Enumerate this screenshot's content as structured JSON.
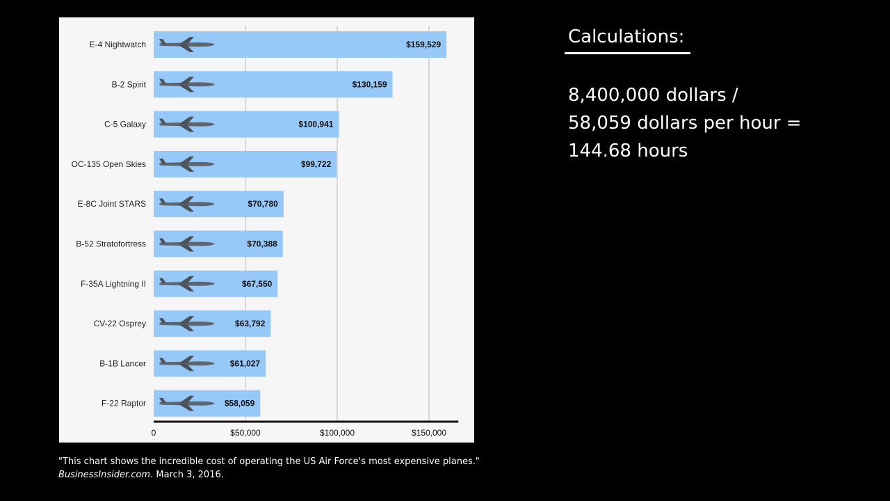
{
  "chart_data": {
    "type": "bar",
    "orientation": "horizontal",
    "categories": [
      "E-4 Nightwatch",
      "B-2 Spirit",
      "C-5 Galaxy",
      "OC-135 Open Skies",
      "E-8C Joint STARS",
      "B-52 Stratofortress",
      "F-35A Lightning II",
      "CV-22 Osprey",
      "B-1B Lancer",
      "F-22 Raptor"
    ],
    "values": [
      159529,
      130159,
      100941,
      99722,
      70780,
      70388,
      67550,
      63792,
      61027,
      58059
    ],
    "value_labels": [
      "$159,529",
      "$130,159",
      "$100,941",
      "$99,722",
      "$70,780",
      "$70,388",
      "$67,550",
      "$63,792",
      "$61,027",
      "$58,059"
    ],
    "x_ticks": [
      0,
      50000,
      100000,
      150000
    ],
    "x_tick_labels": [
      "0",
      "$50,000",
      "$100,000",
      "$150,000"
    ],
    "xlim": [
      0,
      166000
    ],
    "grid": true,
    "bar_color": "#97c9f8",
    "icons": [
      "e4-plane-icon",
      "b2-plane-icon",
      "c5-plane-icon",
      "oc135-plane-icon",
      "e8c-plane-icon",
      "b52-plane-icon",
      "f35-plane-icon",
      "cv22-plane-icon",
      "b1b-plane-icon",
      "f22-plane-icon"
    ]
  },
  "caption": {
    "quote": "\"This chart shows the incredible cost of operating the US Air Force's most expensive planes.\"",
    "source": "BusinessInsider.com",
    "date": ". March 3, 2016."
  },
  "calculations": {
    "title": "Calculations:",
    "lines": [
      "8,400,000 dollars /",
      "58,059 dollars per hour =",
      "144.68 hours"
    ]
  }
}
